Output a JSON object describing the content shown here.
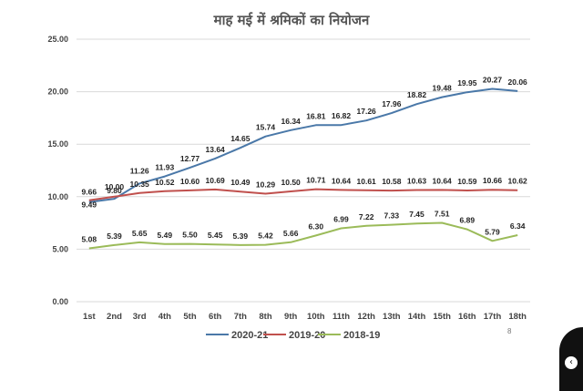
{
  "chart_data": {
    "type": "line",
    "title": "माह मई में श्रमिकों का नियोजन",
    "categories": [
      "1st",
      "2nd",
      "3rd",
      "4th",
      "5th",
      "6th",
      "7th",
      "8th",
      "9th",
      "10th",
      "11th",
      "12th",
      "13th",
      "14th",
      "15th",
      "16th",
      "17th",
      "18th"
    ],
    "ylim": [
      0,
      25
    ],
    "yticks": [
      "0.00",
      "5.00",
      "10.00",
      "15.00",
      "20.00",
      "25.00"
    ],
    "grid": "horizontal",
    "legend_position": "bottom",
    "series": [
      {
        "name": "2020-21",
        "color": "#4a78a8",
        "values": [
          9.49,
          9.8,
          11.26,
          11.93,
          12.77,
          13.64,
          14.65,
          15.74,
          16.34,
          16.81,
          16.82,
          17.26,
          17.96,
          18.82,
          19.48,
          19.95,
          20.27,
          20.06
        ],
        "labels": [
          "9.49",
          "9.80",
          "11.26",
          "11.93",
          "12.77",
          "13.64",
          "14.65",
          "15.74",
          "16.34",
          "16.81",
          "16.82",
          "17.26",
          "17.96",
          "18.82",
          "19.48",
          "19.95",
          "20.27",
          "20.06"
        ]
      },
      {
        "name": "2019-20",
        "color": "#c0504d",
        "values": [
          9.66,
          10.0,
          10.35,
          10.52,
          10.6,
          10.69,
          10.49,
          10.29,
          10.5,
          10.71,
          10.64,
          10.61,
          10.58,
          10.63,
          10.64,
          10.59,
          10.66,
          10.62
        ],
        "labels": [
          "9.66",
          "10.00",
          "10.35",
          "10.52",
          "10.60",
          "10.69",
          "10.49",
          "10.29",
          "10.50",
          "10.71",
          "10.64",
          "10.61",
          "10.58",
          "10.63",
          "10.64",
          "10.59",
          "10.66",
          "10.62"
        ]
      },
      {
        "name": "2018-19",
        "color": "#9bbb59",
        "values": [
          5.08,
          5.39,
          5.65,
          5.49,
          5.5,
          5.45,
          5.39,
          5.42,
          5.66,
          6.3,
          6.99,
          7.22,
          7.33,
          7.45,
          7.51,
          6.89,
          5.79,
          6.34
        ],
        "labels": [
          "5.08",
          "5.39",
          "5.65",
          "5.49",
          "5.50",
          "5.45",
          "5.39",
          "5.42",
          "5.66",
          "6.30",
          "6.99",
          "7.22",
          "7.33",
          "7.45",
          "7.51",
          "6.89",
          "5.79",
          "6.34"
        ]
      }
    ]
  },
  "page_number": "8"
}
